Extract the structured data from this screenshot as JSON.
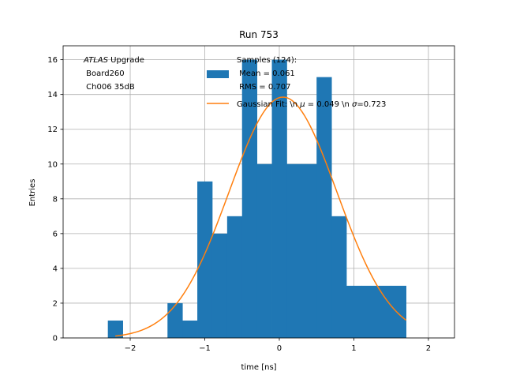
{
  "chart_data": {
    "type": "bar",
    "title": "Run 753",
    "xlabel": "time [ns]",
    "ylabel": "Entries",
    "xlim": [
      -2.9,
      2.35
    ],
    "ylim": [
      0,
      16.8
    ],
    "grid": true,
    "xticks": [
      -2,
      -1,
      0,
      1,
      2
    ],
    "yticks": [
      0,
      2,
      4,
      6,
      8,
      10,
      12,
      14,
      16
    ],
    "xtick_labels": [
      "−2",
      "−1",
      "0",
      "1",
      "2"
    ],
    "ytick_labels": [
      "0",
      "2",
      "4",
      "6",
      "8",
      "10",
      "12",
      "14",
      "16"
    ],
    "annotation": {
      "italic": "ATLAS",
      "line1_rest": " Upgrade",
      "line2": " Board260",
      "line3": " Ch006 35dB"
    },
    "series": [
      {
        "name": "Samples (124):",
        "legend_lines": [
          "Samples (124):",
          " Mean = 0.061",
          " RMS = 0.707"
        ],
        "color": "#1f77b4",
        "bin_edges": [
          -2.3,
          -2.1,
          -1.9,
          -1.7,
          -1.5,
          -1.3,
          -1.1,
          -0.9,
          -0.7,
          -0.5,
          -0.3,
          -0.1,
          0.1,
          0.3,
          0.5,
          0.7,
          0.9,
          1.1,
          1.3,
          1.5,
          1.7
        ],
        "counts": [
          1,
          0,
          0,
          0,
          2,
          1,
          9,
          6,
          7,
          16,
          10,
          16,
          10,
          10,
          15,
          7,
          3,
          3,
          3,
          3
        ]
      },
      {
        "name": "Gaussian Fit: \\n μ = 0.049 \\n σ=0.723",
        "legend_parts": [
          "Gaussian Fit: \\n ",
          "μ",
          " = 0.049 \\n ",
          "σ",
          "=0.723"
        ],
        "color": "#ff7f0e",
        "type": "line",
        "x_range": [
          -2.2,
          1.7
        ],
        "amplitude": 13.85,
        "mu": 0.049,
        "sigma": 0.723
      }
    ]
  }
}
